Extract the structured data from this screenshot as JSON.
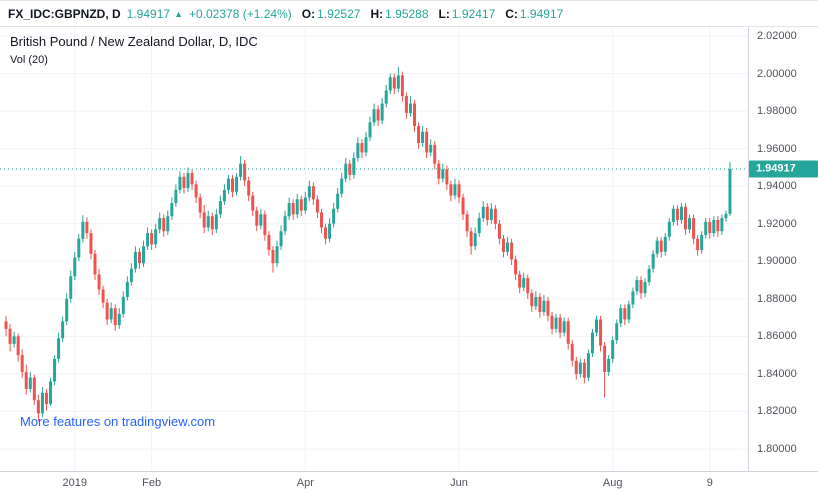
{
  "header": {
    "symbol": "FX_IDC:GBPNZD, D",
    "last_price": "1.94917",
    "change_arrow": "▲",
    "change_text": "+0.02378 (+1.24%)",
    "ohlc": [
      {
        "label": "O:",
        "value": "1.92527"
      },
      {
        "label": "H:",
        "value": "1.95288"
      },
      {
        "label": "L:",
        "value": "1.92417"
      },
      {
        "label": "C:",
        "value": "1.94917"
      }
    ]
  },
  "legend": {
    "title": "British Pound / New Zealand Dollar, D, IDC",
    "indicator": "Vol (20)"
  },
  "watermark_link": "More features on tradingview.com",
  "price_axis": {
    "labels": [
      "2.02000",
      "2.00000",
      "1.98000",
      "1.96000",
      "1.94000",
      "1.92000",
      "1.90000",
      "1.88000",
      "1.86000",
      "1.84000",
      "1.82000",
      "1.80000"
    ],
    "current_label": "1.94917"
  },
  "time_axis": {
    "ticks": [
      {
        "label": "2019",
        "idx": 17
      },
      {
        "label": "Feb",
        "idx": 36
      },
      {
        "label": "Apr",
        "idx": 74
      },
      {
        "label": "Jun",
        "idx": 112
      },
      {
        "label": "Aug",
        "idx": 150
      },
      {
        "label": "9",
        "idx": 174
      }
    ]
  },
  "colors": {
    "up": "#26a69a",
    "down": "#ef5350",
    "link": "#2962ff",
    "grid": "#f0f3fa",
    "axis_text": "#50535e"
  },
  "chart_data": {
    "type": "candlestick",
    "title": "British Pound / New Zealand Dollar, D, IDC",
    "symbol": "GBPNZD",
    "interval": "D",
    "ylim": [
      1.8,
      2.02
    ],
    "current_price": 1.94917,
    "last_ohlc": {
      "open": 1.92527,
      "high": 1.95288,
      "low": 1.92417,
      "close": 1.94917
    },
    "candles": [
      [
        1.868,
        1.871,
        1.86,
        1.864
      ],
      [
        1.864,
        1.8665,
        1.852,
        1.856
      ],
      [
        1.856,
        1.8625,
        1.854,
        1.86
      ],
      [
        1.86,
        1.8615,
        1.8465,
        1.85
      ],
      [
        1.85,
        1.853,
        1.838,
        1.841
      ],
      [
        1.841,
        1.845,
        1.829,
        1.832
      ],
      [
        1.832,
        1.841,
        1.83,
        1.838
      ],
      [
        1.838,
        1.8395,
        1.8235,
        1.826
      ],
      [
        1.826,
        1.829,
        1.8148,
        1.819
      ],
      [
        1.819,
        1.833,
        1.817,
        1.83
      ],
      [
        1.83,
        1.832,
        1.8205,
        1.824
      ],
      [
        1.824,
        1.838,
        1.823,
        1.836
      ],
      [
        1.836,
        1.85,
        1.834,
        1.848
      ],
      [
        1.848,
        1.862,
        1.846,
        1.859
      ],
      [
        1.859,
        1.8705,
        1.857,
        1.868
      ],
      [
        1.868,
        1.883,
        1.866,
        1.88
      ],
      [
        1.88,
        1.895,
        1.878,
        1.892
      ],
      [
        1.892,
        1.905,
        1.89,
        1.902
      ],
      [
        1.902,
        1.9145,
        1.9,
        1.912
      ],
      [
        1.912,
        1.9245,
        1.91,
        1.921
      ],
      [
        1.921,
        1.9235,
        1.912,
        1.915
      ],
      [
        1.915,
        1.917,
        1.901,
        1.904
      ],
      [
        1.904,
        1.906,
        1.89,
        1.893
      ],
      [
        1.893,
        1.896,
        1.882,
        1.885
      ],
      [
        1.885,
        1.887,
        1.875,
        1.878
      ],
      [
        1.878,
        1.88,
        1.866,
        1.869
      ],
      [
        1.869,
        1.878,
        1.867,
        1.875
      ],
      [
        1.875,
        1.877,
        1.863,
        1.866
      ],
      [
        1.866,
        1.875,
        1.864,
        1.872
      ],
      [
        1.872,
        1.884,
        1.87,
        1.881
      ],
      [
        1.881,
        1.892,
        1.879,
        1.889
      ],
      [
        1.889,
        1.899,
        1.887,
        1.896
      ],
      [
        1.896,
        1.908,
        1.894,
        1.905
      ],
      [
        1.905,
        1.907,
        1.896,
        1.899
      ],
      [
        1.899,
        1.911,
        1.897,
        1.908
      ],
      [
        1.908,
        1.918,
        1.906,
        1.915
      ],
      [
        1.915,
        1.917,
        1.906,
        1.909
      ],
      [
        1.909,
        1.92,
        1.907,
        1.917
      ],
      [
        1.917,
        1.926,
        1.915,
        1.923
      ],
      [
        1.923,
        1.925,
        1.913,
        1.916
      ],
      [
        1.916,
        1.927,
        1.914,
        1.924
      ],
      [
        1.924,
        1.934,
        1.922,
        1.931
      ],
      [
        1.931,
        1.941,
        1.929,
        1.938
      ],
      [
        1.938,
        1.948,
        1.936,
        1.945
      ],
      [
        1.945,
        1.947,
        1.936,
        1.939
      ],
      [
        1.939,
        1.95,
        1.937,
        1.947
      ],
      [
        1.947,
        1.949,
        1.938,
        1.941
      ],
      [
        1.941,
        1.943,
        1.931,
        1.934
      ],
      [
        1.934,
        1.936,
        1.923,
        1.926
      ],
      [
        1.926,
        1.93,
        1.915,
        1.918
      ],
      [
        1.918,
        1.927,
        1.916,
        1.924
      ],
      [
        1.924,
        1.926,
        1.914,
        1.917
      ],
      [
        1.917,
        1.928,
        1.915,
        1.925
      ],
      [
        1.925,
        1.935,
        1.923,
        1.932
      ],
      [
        1.932,
        1.941,
        1.93,
        1.938
      ],
      [
        1.938,
        1.946,
        1.936,
        1.944
      ],
      [
        1.944,
        1.946,
        1.934,
        1.937
      ],
      [
        1.937,
        1.947,
        1.935,
        1.945
      ],
      [
        1.945,
        1.956,
        1.943,
        1.952
      ],
      [
        1.952,
        1.954,
        1.94,
        1.943
      ],
      [
        1.943,
        1.945,
        1.932,
        1.935
      ],
      [
        1.935,
        1.937,
        1.924,
        1.927
      ],
      [
        1.927,
        1.929,
        1.916,
        1.919
      ],
      [
        1.919,
        1.928,
        1.917,
        1.925
      ],
      [
        1.925,
        1.927,
        1.911,
        1.914
      ],
      [
        1.914,
        1.916,
        1.903,
        1.906
      ],
      [
        1.906,
        1.908,
        1.894,
        1.899
      ],
      [
        1.899,
        1.911,
        1.897,
        1.908
      ],
      [
        1.908,
        1.919,
        1.906,
        1.916
      ],
      [
        1.916,
        1.927,
        1.914,
        1.924
      ],
      [
        1.924,
        1.934,
        1.922,
        1.931
      ],
      [
        1.931,
        1.933,
        1.922,
        1.925
      ],
      [
        1.925,
        1.936,
        1.923,
        1.933
      ],
      [
        1.933,
        1.935,
        1.924,
        1.927
      ],
      [
        1.927,
        1.937,
        1.925,
        1.934
      ],
      [
        1.934,
        1.943,
        1.932,
        1.94
      ],
      [
        1.94,
        1.942,
        1.93,
        1.933
      ],
      [
        1.933,
        1.935,
        1.923,
        1.926
      ],
      [
        1.926,
        1.928,
        1.915,
        1.918
      ],
      [
        1.918,
        1.92,
        1.909,
        1.912
      ],
      [
        1.912,
        1.923,
        1.91,
        1.92
      ],
      [
        1.92,
        1.931,
        1.918,
        1.928
      ],
      [
        1.928,
        1.939,
        1.926,
        1.936
      ],
      [
        1.936,
        1.947,
        1.934,
        1.944
      ],
      [
        1.944,
        1.955,
        1.942,
        1.952
      ],
      [
        1.952,
        1.954,
        1.943,
        1.946
      ],
      [
        1.946,
        1.958,
        1.944,
        1.955
      ],
      [
        1.955,
        1.966,
        1.953,
        1.963
      ],
      [
        1.963,
        1.965,
        1.955,
        1.958
      ],
      [
        1.958,
        1.969,
        1.956,
        1.966
      ],
      [
        1.966,
        1.977,
        1.964,
        1.974
      ],
      [
        1.974,
        1.984,
        1.972,
        1.981
      ],
      [
        1.981,
        1.983,
        1.972,
        1.975
      ],
      [
        1.975,
        1.987,
        1.973,
        1.984
      ],
      [
        1.984,
        1.994,
        1.982,
        1.991
      ],
      [
        1.991,
        2.0,
        1.989,
        1.998
      ],
      [
        1.998,
        2.0,
        1.989,
        1.992
      ],
      [
        1.992,
        2.0035,
        1.99,
        1.999
      ],
      [
        1.999,
        2.001,
        1.985,
        1.988
      ],
      [
        1.988,
        1.99,
        1.976,
        1.979
      ],
      [
        1.979,
        1.988,
        1.977,
        1.984
      ],
      [
        1.984,
        1.986,
        1.969,
        1.972
      ],
      [
        1.972,
        1.974,
        1.96,
        1.963
      ],
      [
        1.963,
        1.972,
        1.961,
        1.969
      ],
      [
        1.969,
        1.971,
        1.955,
        1.958
      ],
      [
        1.958,
        1.965,
        1.956,
        1.962
      ],
      [
        1.962,
        1.964,
        1.949,
        1.952
      ],
      [
        1.952,
        1.954,
        1.941,
        1.944
      ],
      [
        1.944,
        1.952,
        1.942,
        1.949
      ],
      [
        1.949,
        1.951,
        1.938,
        1.941
      ],
      [
        1.941,
        1.943,
        1.932,
        1.935
      ],
      [
        1.935,
        1.944,
        1.933,
        1.941
      ],
      [
        1.941,
        1.943,
        1.931,
        1.934
      ],
      [
        1.934,
        1.936,
        1.922,
        1.925
      ],
      [
        1.925,
        1.927,
        1.913,
        1.916
      ],
      [
        1.916,
        1.918,
        1.9035,
        1.908
      ],
      [
        1.908,
        1.918,
        1.906,
        1.915
      ],
      [
        1.915,
        1.926,
        1.913,
        1.923
      ],
      [
        1.923,
        1.932,
        1.921,
        1.929
      ],
      [
        1.929,
        1.931,
        1.919,
        1.922
      ],
      [
        1.922,
        1.931,
        1.92,
        1.928
      ],
      [
        1.928,
        1.93,
        1.917,
        1.92
      ],
      [
        1.92,
        1.922,
        1.909,
        1.912
      ],
      [
        1.912,
        1.914,
        1.902,
        1.905
      ],
      [
        1.905,
        1.913,
        1.903,
        1.91
      ],
      [
        1.91,
        1.912,
        1.898,
        1.901
      ],
      [
        1.901,
        1.903,
        1.89,
        1.893
      ],
      [
        1.893,
        1.895,
        1.883,
        1.886
      ],
      [
        1.886,
        1.894,
        1.884,
        1.891
      ],
      [
        1.891,
        1.893,
        1.88,
        1.883
      ],
      [
        1.883,
        1.885,
        1.873,
        1.876
      ],
      [
        1.876,
        1.884,
        1.874,
        1.881
      ],
      [
        1.881,
        1.883,
        1.87,
        1.873
      ],
      [
        1.873,
        1.882,
        1.871,
        1.879
      ],
      [
        1.879,
        1.881,
        1.868,
        1.871
      ],
      [
        1.871,
        1.873,
        1.861,
        1.864
      ],
      [
        1.864,
        1.872,
        1.862,
        1.87
      ],
      [
        1.87,
        1.872,
        1.859,
        1.862
      ],
      [
        1.862,
        1.87,
        1.86,
        1.868
      ],
      [
        1.868,
        1.87,
        1.853,
        1.856
      ],
      [
        1.856,
        1.858,
        1.844,
        1.847
      ],
      [
        1.847,
        1.849,
        1.837,
        1.84
      ],
      [
        1.84,
        1.848,
        1.838,
        1.846
      ],
      [
        1.846,
        1.848,
        1.835,
        1.838
      ],
      [
        1.838,
        1.853,
        1.836,
        1.851
      ],
      [
        1.851,
        1.864,
        1.849,
        1.862
      ],
      [
        1.862,
        1.871,
        1.86,
        1.869
      ],
      [
        1.869,
        1.871,
        1.852,
        1.855
      ],
      [
        1.855,
        1.857,
        1.8275,
        1.841
      ],
      [
        1.841,
        1.85,
        1.839,
        1.848
      ],
      [
        1.848,
        1.86,
        1.846,
        1.858
      ],
      [
        1.858,
        1.869,
        1.856,
        1.867
      ],
      [
        1.867,
        1.877,
        1.865,
        1.875
      ],
      [
        1.875,
        1.877,
        1.866,
        1.869
      ],
      [
        1.869,
        1.879,
        1.867,
        1.877
      ],
      [
        1.877,
        1.886,
        1.875,
        1.884
      ],
      [
        1.884,
        1.892,
        1.882,
        1.89
      ],
      [
        1.89,
        1.892,
        1.88,
        1.883
      ],
      [
        1.883,
        1.891,
        1.881,
        1.889
      ],
      [
        1.889,
        1.898,
        1.887,
        1.896
      ],
      [
        1.896,
        1.906,
        1.894,
        1.904
      ],
      [
        1.904,
        1.913,
        1.902,
        1.911
      ],
      [
        1.911,
        1.913,
        1.902,
        1.905
      ],
      [
        1.905,
        1.915,
        1.903,
        1.913
      ],
      [
        1.913,
        1.923,
        1.911,
        1.921
      ],
      [
        1.921,
        1.93,
        1.919,
        1.928
      ],
      [
        1.928,
        1.93,
        1.919,
        1.922
      ],
      [
        1.922,
        1.931,
        1.92,
        1.929
      ],
      [
        1.929,
        1.931,
        1.914,
        1.917
      ],
      [
        1.917,
        1.925,
        1.915,
        1.923
      ],
      [
        1.923,
        1.925,
        1.909,
        1.912
      ],
      [
        1.912,
        1.914,
        1.903,
        1.906
      ],
      [
        1.906,
        1.916,
        1.904,
        1.914
      ],
      [
        1.914,
        1.923,
        1.912,
        1.921
      ],
      [
        1.921,
        1.923,
        1.912,
        1.915
      ],
      [
        1.915,
        1.924,
        1.913,
        1.922
      ],
      [
        1.922,
        1.924,
        1.913,
        1.916
      ],
      [
        1.916,
        1.925,
        1.914,
        1.923
      ],
      [
        1.923,
        1.927,
        1.921,
        1.9253
      ],
      [
        1.92527,
        1.95288,
        1.92417,
        1.94917
      ]
    ]
  }
}
